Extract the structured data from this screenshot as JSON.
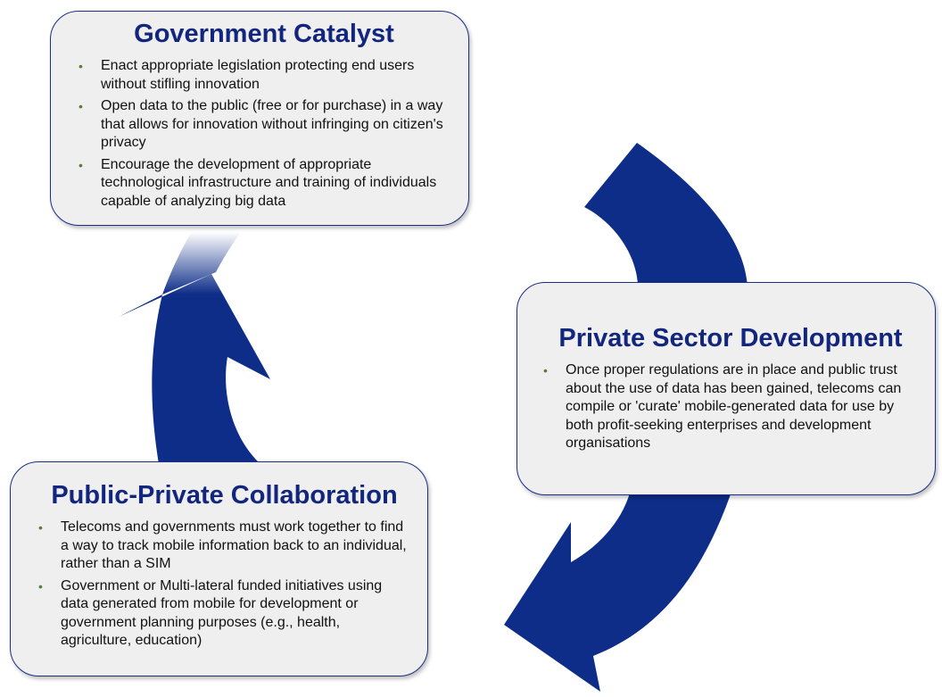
{
  "colors": {
    "arrow": "#0d2d88",
    "title": "#13267d",
    "box_fill": "#efefef",
    "box_border": "#1b2f86",
    "bullet": "#5a7d3c"
  },
  "bullet_glyph": "•",
  "boxes": {
    "government": {
      "title": "Government Catalyst",
      "bullets": [
        "Enact appropriate legislation protecting end users without stifling innovation",
        "Open data to the public (free or for purchase) in a way that allows for innovation without infringing on citizen's privacy",
        "Encourage the development of appropriate technological infrastructure and training of individuals capable of analyzing big data"
      ]
    },
    "private": {
      "title": "Private Sector Development",
      "bullets": [
        "Once proper regulations are in place and public trust about the use of data has been gained, telecoms can compile or 'curate' mobile-generated data for use by both profit-seeking enterprises and development organisations"
      ]
    },
    "public_private": {
      "title": "Public-Private Collaboration",
      "bullets": [
        "Telecoms and governments must  work together to find a way to track mobile information back to an individual, rather than a SIM",
        "Government or Multi-lateral funded initiatives using data  generated from mobile for development or government planning purposes (e.g., health, agriculture, education)"
      ]
    }
  }
}
